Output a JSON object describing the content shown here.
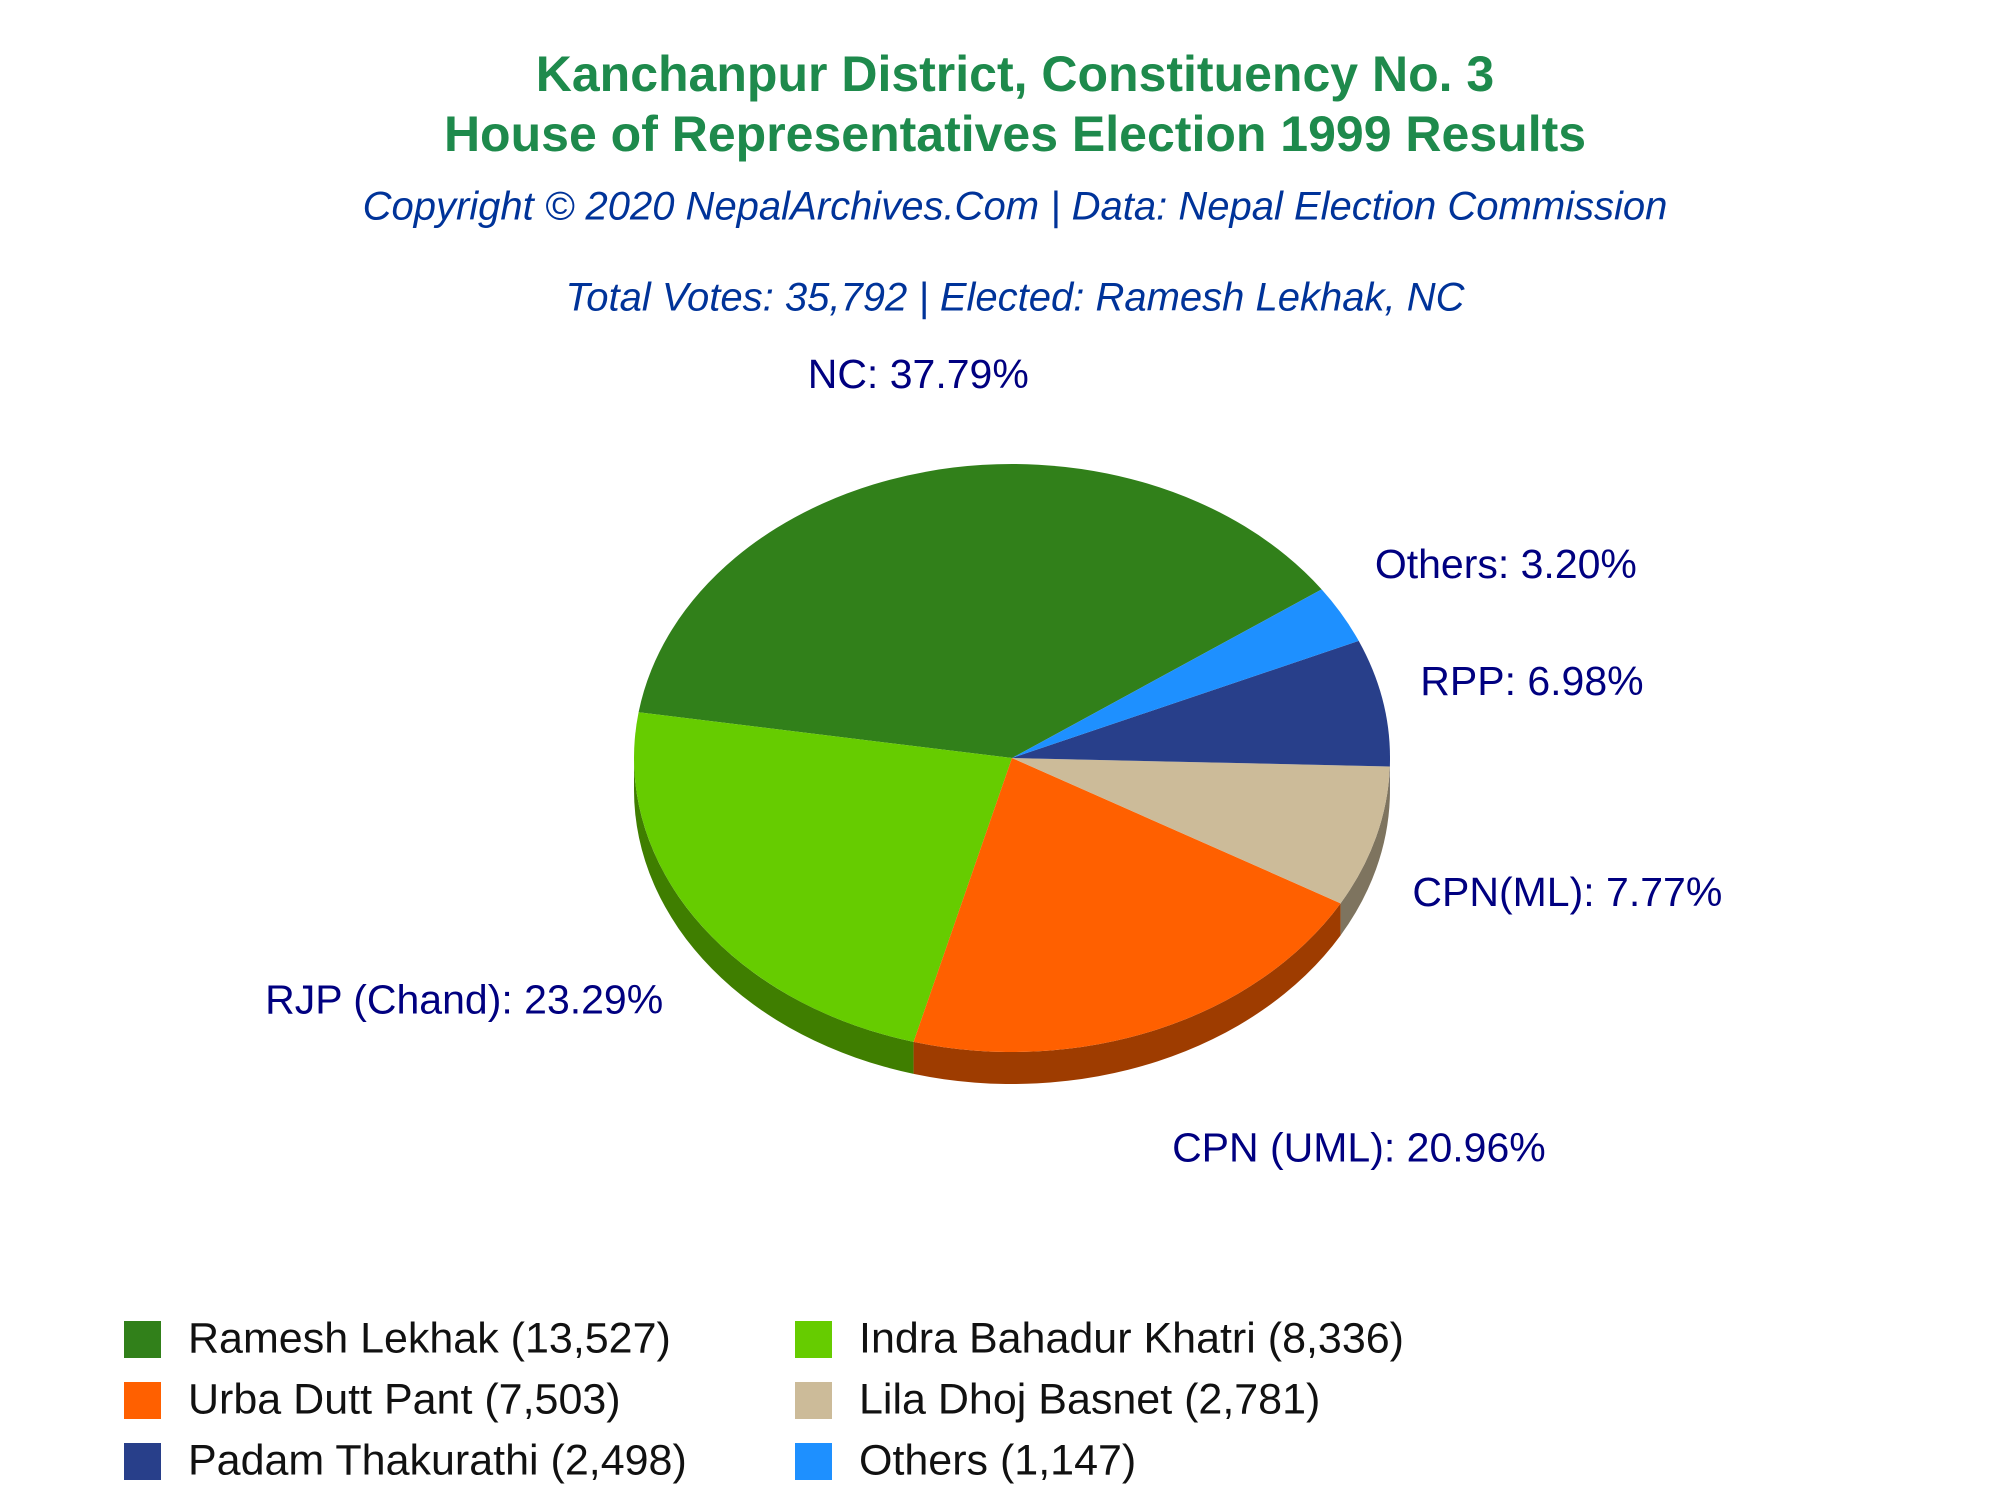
{
  "chart_data": {
    "type": "pie",
    "title": [
      "Kanchanpur District, Constituency No. 3",
      "House of Representatives Election 1999 Results"
    ],
    "subtitle": "Copyright © 2020 NepalArchives.Com | Data: Nepal Election Commission",
    "annotation": "Total Votes: 35,792 | Elected: Ramesh Lekhak, NC",
    "labels": [
      "Ramesh Lekhak (13,527)",
      "Indra Bahadur Khatri (8,336)",
      "Urba Dutt Pant (7,503)",
      "Lila Dhoj Basnet (2,781)",
      "Padam Thakurathi (2,498)",
      "Others (1,147)"
    ],
    "values": [
      37.79,
      23.29,
      20.96,
      7.77,
      6.98,
      3.2
    ],
    "value_labels": [
      "NC: 37.79%",
      "RJP (Chand): 23.29%",
      "CPN (UML): 20.96%",
      "CPN(ML): 7.77%",
      "RPP: 6.98%",
      "Others: 3.20%"
    ],
    "colors": [
      "#31801a",
      "#66cc00",
      "#ff6000",
      "#ccbb99",
      "#283f8a",
      "#1e90ff"
    ]
  }
}
